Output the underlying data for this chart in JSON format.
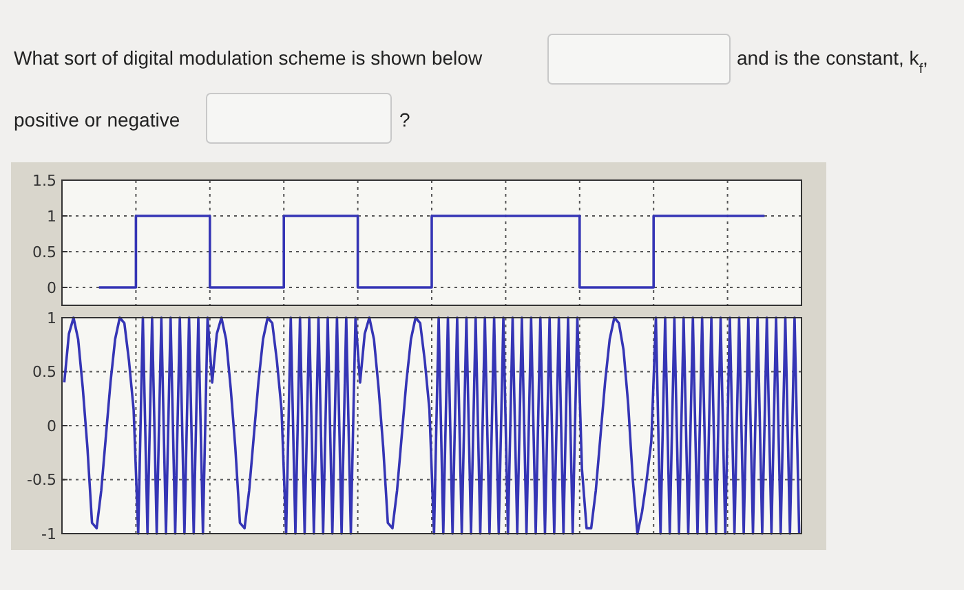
{
  "chart_data": [
    {
      "type": "step",
      "annotations": [
        "What sort of digital modulation scheme is shown below",
        "and is the constant, k$_{f}$,",
        "positive or negative",
        "?"
      ],
      "categories": [
        null,
        null,
        null,
        null,
        null,
        null,
        null,
        null,
        null,
        null
      ],
      "series": [
        {
          "color": "#3535b5",
          "values": [
            0,
            1,
            0,
            1,
            0,
            1,
            1,
            0,
            1,
            1
          ]
        }
      ],
      "ylim": [
        -0.25,
        1.5
      ],
      "yticks": [
        0,
        0.5,
        1,
        1.5
      ],
      "grid": true
    },
    {
      "type": "line",
      "categories": [
        null,
        null,
        null,
        null,
        null,
        null,
        null,
        null,
        null,
        null,
        null,
        null,
        null,
        null,
        null,
        null,
        null,
        null,
        null,
        null,
        null,
        null,
        null,
        null,
        null,
        null,
        null,
        null,
        null,
        null,
        null,
        null,
        null,
        null,
        null,
        null,
        null,
        null,
        null,
        null,
        null,
        null,
        null,
        null,
        null,
        null,
        null,
        null,
        null,
        null,
        null,
        null,
        null,
        null,
        null,
        null,
        null,
        null,
        null,
        null,
        null,
        null,
        null,
        null,
        null,
        null,
        null,
        null,
        null,
        null,
        null,
        null,
        null,
        null,
        null,
        null,
        null,
        null,
        null,
        null,
        null,
        null,
        null,
        null,
        null,
        null,
        null,
        null,
        null,
        null,
        null,
        null,
        null,
        null,
        null,
        null,
        null,
        null,
        null,
        null,
        null,
        null,
        null,
        null,
        null,
        null,
        null,
        null,
        null,
        null,
        null,
        null,
        null,
        null,
        null,
        null,
        null,
        null,
        null,
        null,
        null,
        null,
        null,
        null,
        null,
        null,
        null,
        null,
        null,
        null,
        null,
        null,
        null,
        null,
        null,
        null,
        null,
        null,
        null,
        null,
        null,
        null,
        null,
        null,
        null,
        null,
        null,
        null,
        null,
        null,
        null,
        null,
        null,
        null,
        null,
        null,
        null,
        null,
        null,
        null
      ],
      "series": [
        {
          "color": "#3535b5",
          "values": [
            0.4,
            0.85,
            1,
            0.8,
            0.35,
            -0.2,
            -0.9,
            -0.95,
            -0.6,
            -0.1,
            0.4,
            0.8,
            1,
            0.95,
            0.6,
            0.15,
            -1,
            1,
            -1,
            1,
            -1,
            1,
            -1,
            1,
            -1,
            1,
            -1,
            1,
            -1,
            1,
            -1,
            1,
            0.4,
            0.85,
            1,
            0.8,
            0.35,
            -0.2,
            -0.9,
            -0.95,
            -0.6,
            -0.1,
            0.4,
            0.8,
            1,
            0.95,
            0.6,
            0.15,
            -1,
            1,
            -1,
            1,
            -1,
            1,
            -1,
            1,
            -1,
            1,
            -1,
            1,
            -1,
            1,
            -1,
            1,
            0.4,
            0.85,
            1,
            0.8,
            0.35,
            -0.2,
            -0.9,
            -0.95,
            -0.6,
            -0.1,
            0.4,
            0.8,
            1,
            0.95,
            0.6,
            0.15,
            -1,
            1,
            -1,
            1,
            -1,
            1,
            -1,
            1,
            -1,
            1,
            -1,
            1,
            -1,
            1,
            -1,
            1,
            -1,
            1,
            -1,
            1,
            -1,
            1,
            -1,
            1,
            -1,
            1,
            -1,
            1,
            -1,
            1,
            -1,
            1,
            -0.4,
            -0.95,
            -0.95,
            -0.6,
            -0.1,
            0.4,
            0.8,
            1,
            0.95,
            0.7,
            0.2,
            -0.5,
            -1,
            -0.8,
            -0.5,
            -0.15,
            1,
            -1,
            1,
            -1,
            1,
            -1,
            1,
            -1,
            1,
            -1,
            1,
            -1,
            1,
            -1,
            1,
            -1,
            1,
            -1,
            1,
            -1,
            1,
            -1,
            1,
            -1,
            1,
            -1,
            1,
            -1,
            1,
            -1,
            1,
            -1
          ]
        }
      ],
      "ylim": [
        -1,
        1
      ],
      "yticks": [
        -1,
        -0.5,
        0,
        0.5,
        1
      ],
      "grid": true
    }
  ]
}
